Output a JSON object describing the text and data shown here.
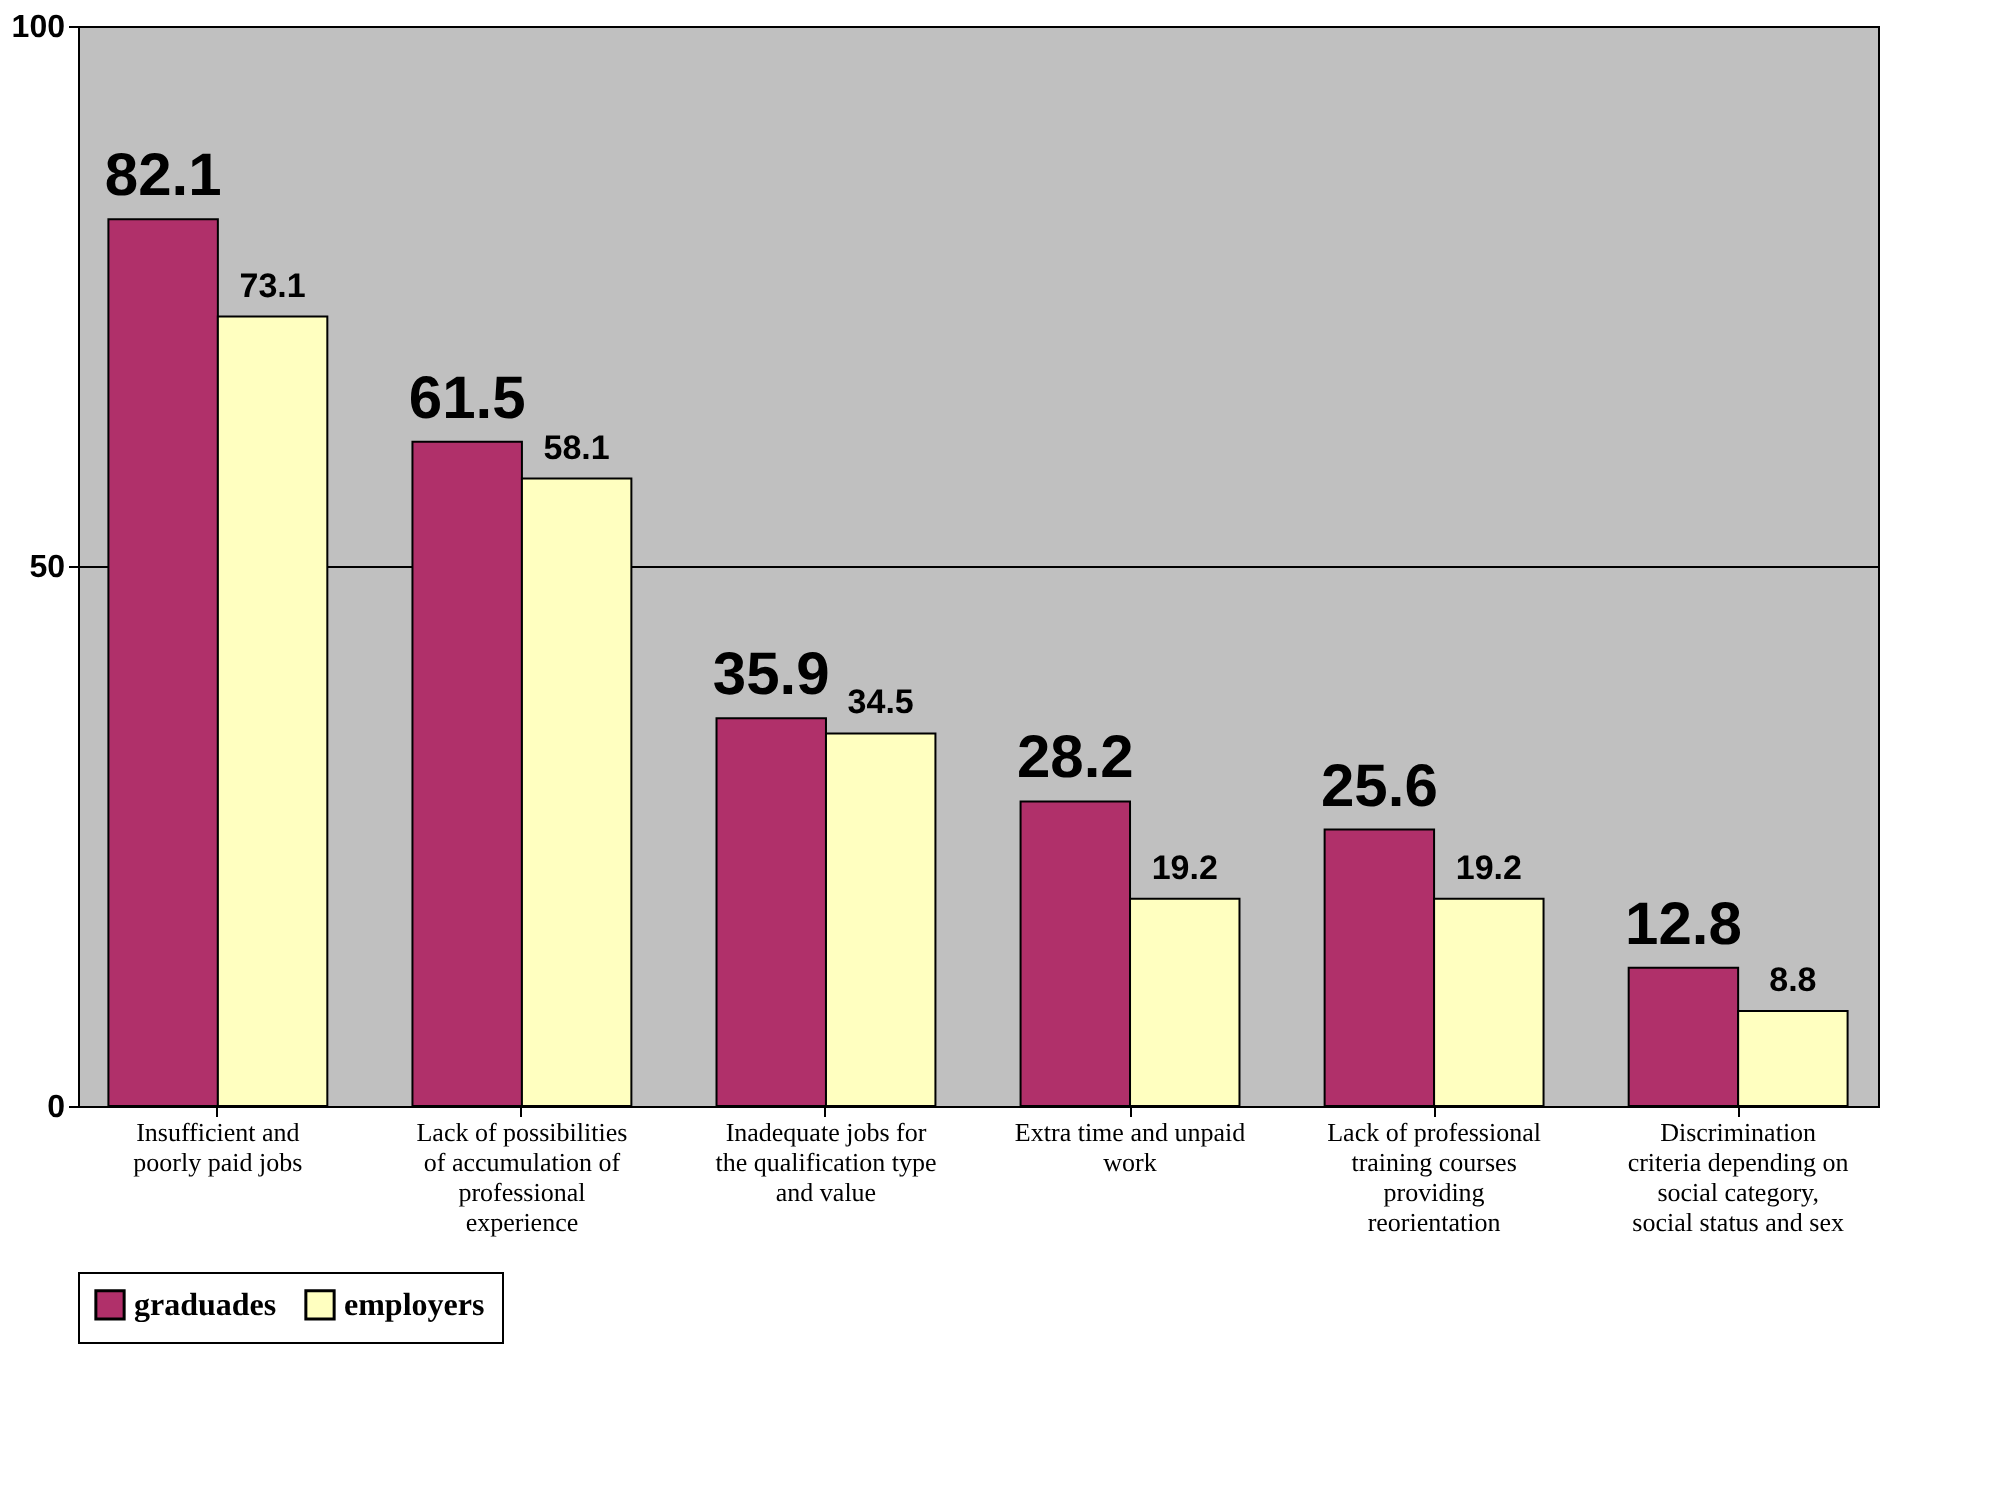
{
  "chart_data": {
    "type": "bar",
    "categories": [
      "Insufficient and poorly paid jobs",
      "Lack of possibilities of accumulation of professional experience",
      "Inadequate jobs for the qualification type and value",
      "Extra time and unpaid work",
      "Lack of professional training courses providing reorientation",
      "Discrimination criteria depending on social category, social status and sex"
    ],
    "series": [
      {
        "name": "graduades",
        "color": "#b0306a",
        "values": [
          82.1,
          61.5,
          35.9,
          28.2,
          25.6,
          12.8
        ]
      },
      {
        "name": "employers",
        "color": "#ffffc0",
        "values": [
          73.1,
          58.1,
          34.5,
          19.2,
          19.2,
          8.8
        ]
      }
    ],
    "ylim": [
      0,
      100
    ],
    "yticks": [
      0,
      50,
      100
    ],
    "grid": "y",
    "legend": "bottom",
    "data_labels": true
  }
}
